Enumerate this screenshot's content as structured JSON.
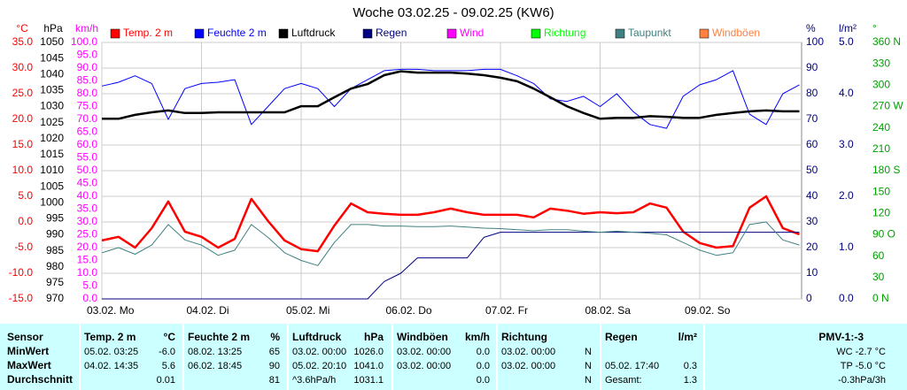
{
  "chart_data": {
    "type": "line",
    "title": "Woche 03.02.25 - 09.02.25 (KW6)",
    "grid": true,
    "xlim": [
      0,
      168
    ],
    "xticks": [
      {
        "value": 0,
        "label": "03.02.  Mo"
      },
      {
        "value": 24,
        "label": "04.02.  Di"
      },
      {
        "value": 48,
        "label": "05.02.  Mi"
      },
      {
        "value": 72,
        "label": "06.02.  Do"
      },
      {
        "value": 96,
        "label": "07.02.  Fr"
      },
      {
        "value": 120,
        "label": "08.02.  Sa"
      },
      {
        "value": 144,
        "label": "09.02.  So"
      }
    ],
    "axes": [
      {
        "label": "°C",
        "color": "#ff0000",
        "side": "left",
        "lim": [
          -15,
          35
        ],
        "ticks": [
          {
            "value": -15,
            "label": "-15.0"
          },
          {
            "value": -10,
            "label": "-10.0"
          },
          {
            "value": -5,
            "label": "-5.0"
          },
          {
            "value": 0,
            "label": "0.0"
          },
          {
            "value": 5,
            "label": "5.0"
          },
          {
            "value": 10,
            "label": "10.0"
          },
          {
            "value": 15,
            "label": "15.0"
          },
          {
            "value": 20,
            "label": "20.0"
          },
          {
            "value": 25,
            "label": "25.0"
          },
          {
            "value": 30,
            "label": "30.0"
          },
          {
            "value": 35,
            "label": "35.0"
          }
        ]
      },
      {
        "label": "hPa",
        "color": "#000000",
        "side": "left",
        "lim": [
          970,
          1050
        ],
        "ticks": [
          970,
          975,
          980,
          985,
          990,
          995,
          1000,
          1005,
          1010,
          1015,
          1020,
          1025,
          1030,
          1035,
          1040,
          1045,
          1050
        ]
      },
      {
        "label": "km/h",
        "color": "#ff00ff",
        "side": "left",
        "lim": [
          0,
          100
        ],
        "ticks": [
          {
            "value": 0,
            "label": "0.0"
          },
          {
            "value": 5,
            "label": "5.0"
          },
          {
            "value": 10,
            "label": "10.0"
          },
          {
            "value": 15,
            "label": "15.0"
          },
          {
            "value": 20,
            "label": "20.0"
          },
          {
            "value": 25,
            "label": "25.0"
          },
          {
            "value": 30,
            "label": "30.0"
          },
          {
            "value": 35,
            "label": "35.0"
          },
          {
            "value": 40,
            "label": "40.0"
          },
          {
            "value": 45,
            "label": "45.0"
          },
          {
            "value": 50,
            "label": "50.0"
          },
          {
            "value": 55,
            "label": "55.0"
          },
          {
            "value": 60,
            "label": "60.0"
          },
          {
            "value": 65,
            "label": "65.0"
          },
          {
            "value": 70,
            "label": "70.0"
          },
          {
            "value": 75,
            "label": "75.0"
          },
          {
            "value": 80,
            "label": "80.0"
          },
          {
            "value": 85,
            "label": "85.0"
          },
          {
            "value": 90,
            "label": "90.0"
          },
          {
            "value": 95,
            "label": "95.0"
          },
          {
            "value": 100,
            "label": "100.0"
          }
        ]
      },
      {
        "label": "%",
        "color": "#000080",
        "side": "right",
        "lim": [
          0,
          100
        ],
        "ticks": [
          0,
          10,
          20,
          30,
          40,
          50,
          60,
          70,
          80,
          90,
          100
        ]
      },
      {
        "label": "l/m²",
        "color": "#000080",
        "side": "right",
        "lim": [
          0,
          5
        ],
        "ticks": [
          {
            "value": 0,
            "label": "0.0"
          },
          {
            "value": 1,
            "label": "1.0"
          },
          {
            "value": 2,
            "label": "2.0"
          },
          {
            "value": 3,
            "label": "3.0"
          },
          {
            "value": 4,
            "label": "4.0"
          },
          {
            "value": 5,
            "label": "5.0"
          }
        ]
      },
      {
        "label": "°",
        "color": "#00a000",
        "side": "right",
        "lim": [
          0,
          360
        ],
        "ticks": [
          {
            "value": 0,
            "label": "0 N"
          },
          30,
          60,
          {
            "value": 90,
            "label": "90 O"
          },
          120,
          150,
          {
            "value": 180,
            "label": "180 S"
          },
          210,
          240,
          {
            "value": 270,
            "label": "270 W"
          },
          300,
          330,
          {
            "value": 360,
            "label": "360 N"
          }
        ]
      }
    ],
    "x": [
      0,
      4,
      8,
      12,
      16,
      20,
      24,
      28,
      32,
      36,
      40,
      44,
      48,
      52,
      56,
      60,
      64,
      68,
      72,
      76,
      80,
      84,
      88,
      92,
      96,
      100,
      104,
      108,
      112,
      116,
      120,
      124,
      128,
      132,
      136,
      140,
      144,
      148,
      152,
      156,
      160,
      164,
      168
    ],
    "series": [
      {
        "name": "Temp. 2 m",
        "color": "#ff0000",
        "axis": 0,
        "width": 2.5,
        "values": [
          -3.6,
          -2.9,
          -5.0,
          -1.2,
          4.0,
          -1.9,
          -2.9,
          -5.0,
          -3.3,
          4.5,
          0.2,
          -3.6,
          -5.3,
          -5.7,
          -0.7,
          3.6,
          1.9,
          1.6,
          1.4,
          1.4,
          1.9,
          2.6,
          1.9,
          1.4,
          1.4,
          1.4,
          0.9,
          2.6,
          2.2,
          1.6,
          1.9,
          1.7,
          1.9,
          3.6,
          2.8,
          -1.9,
          -4.1,
          -5.0,
          -4.7,
          2.8,
          5.0,
          -1.2,
          -2.4
        ]
      },
      {
        "name": "Feuchte  2 m",
        "color": "#0000ff",
        "axis": 3,
        "width": 1,
        "values": [
          83,
          84.5,
          87,
          84,
          70,
          82,
          84,
          84.5,
          85.5,
          68,
          75,
          82,
          84,
          82,
          75,
          82,
          85.5,
          89,
          89.5,
          89.5,
          89,
          89,
          89,
          89.5,
          89.5,
          87,
          84,
          78,
          77,
          79,
          75,
          80,
          73,
          68,
          66.5,
          79,
          83.5,
          85.5,
          89,
          72,
          68,
          80,
          83.5
        ]
      },
      {
        "name": "Luftdruck",
        "color": "#000000",
        "axis": 1,
        "width": 2.5,
        "values": [
          1026.2,
          1026.2,
          1027.4,
          1028.2,
          1028.8,
          1028,
          1028,
          1028.2,
          1028.2,
          1028.2,
          1028.2,
          1028.2,
          1030.1,
          1030.1,
          1032.9,
          1035.6,
          1037,
          1039.8,
          1041,
          1040.6,
          1040.6,
          1040.6,
          1040.3,
          1039.8,
          1039,
          1037.9,
          1035.6,
          1032.9,
          1030.1,
          1028,
          1026.2,
          1026.5,
          1026.5,
          1027,
          1026.8,
          1026.5,
          1026.5,
          1027.4,
          1028,
          1028.5,
          1028.8,
          1028.5,
          1028.5
        ]
      },
      {
        "name": "Regen",
        "color": "#000080",
        "axis": 4,
        "width": 1,
        "values": [
          0,
          0,
          0,
          0,
          0,
          0,
          0,
          0,
          0,
          0,
          0,
          0,
          0,
          0,
          0,
          0,
          0,
          0.34,
          0.5,
          0.8,
          0.8,
          0.8,
          0.8,
          1.2,
          1.3,
          1.3,
          1.3,
          1.3,
          1.3,
          1.3,
          1.3,
          1.3,
          1.3,
          1.3,
          1.3,
          1.3,
          1.3,
          1.3,
          1.3,
          1.3,
          1.3,
          1.3,
          1.3
        ]
      },
      {
        "name": "Wind",
        "color": "#ff00ff",
        "axis": 2,
        "width": 1,
        "values": [
          null,
          null,
          null,
          null,
          null,
          null,
          null,
          null,
          null,
          null,
          null,
          null,
          null,
          null,
          null,
          null,
          null,
          null,
          null,
          null,
          null,
          null,
          null,
          null,
          null,
          null,
          null,
          null,
          null,
          null,
          null,
          null,
          null,
          null,
          null,
          null,
          null,
          null,
          null,
          null,
          null,
          null,
          null
        ]
      },
      {
        "name": "Richtung",
        "color": "#00ff00",
        "axis": 5,
        "width": 1,
        "values": [
          null,
          null,
          null,
          null,
          null,
          null,
          null,
          null,
          null,
          null,
          null,
          null,
          null,
          null,
          null,
          null,
          null,
          null,
          null,
          null,
          null,
          null,
          null,
          null,
          null,
          null,
          null,
          null,
          null,
          null,
          null,
          null,
          null,
          null,
          null,
          null,
          null,
          null,
          null,
          null,
          null,
          null,
          null
        ]
      },
      {
        "name": "Taupunkt",
        "color": "#408080",
        "axis": 0,
        "width": 1,
        "values": [
          -6,
          -5,
          -6.3,
          -4.5,
          -0.5,
          -3.5,
          -4.5,
          -6.5,
          -5.5,
          -0.5,
          -3,
          -6,
          -7.5,
          -8.5,
          -4,
          -0.5,
          -0.5,
          -0.8,
          -0.8,
          -0.9,
          -0.9,
          -0.8,
          -1,
          -1.2,
          -1.3,
          -1.5,
          -1.7,
          -1.5,
          -1.5,
          -1.8,
          -2,
          -1.8,
          -2,
          -2.2,
          -2.5,
          -4,
          -5.5,
          -6.5,
          -6,
          -0.5,
          0,
          -3.5,
          -4.5
        ]
      },
      {
        "name": "Windböen",
        "color": "#ff8040",
        "axis": 2,
        "width": 1,
        "values": [
          null,
          null,
          null,
          null,
          null,
          null,
          null,
          null,
          null,
          null,
          null,
          null,
          null,
          null,
          null,
          null,
          null,
          null,
          null,
          null,
          null,
          null,
          null,
          null,
          null,
          null,
          null,
          null,
          null,
          null,
          null,
          null,
          null,
          null,
          null,
          null,
          null,
          null,
          null,
          null,
          null,
          null,
          null
        ]
      }
    ]
  },
  "table": {
    "header": {
      "label": "Sensor",
      "groups": [
        {
          "name": "Temp. 2 m",
          "unit": "°C"
        },
        {
          "name": "Feuchte  2 m",
          "unit": "%"
        },
        {
          "name": "Luftdruck",
          "unit": "hPa"
        },
        {
          "name": "Windböen",
          "unit": "km/h"
        },
        {
          "name": "Richtung"
        },
        {
          "name": "Regen",
          "unit": "l/m²"
        }
      ],
      "extra": "PMV-1:-3"
    },
    "rows": [
      {
        "label": "MinWert",
        "cells": [
          [
            "05.02.  03:25",
            "-6.0"
          ],
          [
            "08.02.  13:25",
            "65"
          ],
          [
            "03.02.  00:00",
            "1026.0"
          ],
          [
            "03.02.  00:00",
            "0.0"
          ],
          [
            "03.02.  00:00",
            "N"
          ],
          [
            null,
            null
          ]
        ],
        "extra": "WC -2.7 °C"
      },
      {
        "label": "MaxWert",
        "cells": [
          [
            "04.02.  14:35",
            "5.6"
          ],
          [
            "06.02.  18:45",
            "90"
          ],
          [
            "05.02.  20:10",
            "1041.0"
          ],
          [
            "03.02.  00:00",
            "0.0"
          ],
          [
            "03.02.  00:00",
            "N"
          ],
          [
            "05.02.  17:40",
            "0.3"
          ]
        ],
        "extra": "TP -5.0 °C"
      },
      {
        "label": "Durchschnitt",
        "cells": [
          [
            null,
            "0.01"
          ],
          [
            null,
            "81"
          ],
          [
            "^3.6hPa/h",
            "1031.1"
          ],
          [
            null,
            "0.0"
          ],
          [
            null,
            "N"
          ],
          [
            "Gesamt:",
            "1.3"
          ]
        ],
        "extra": "-0.3hPa/3h"
      }
    ]
  }
}
